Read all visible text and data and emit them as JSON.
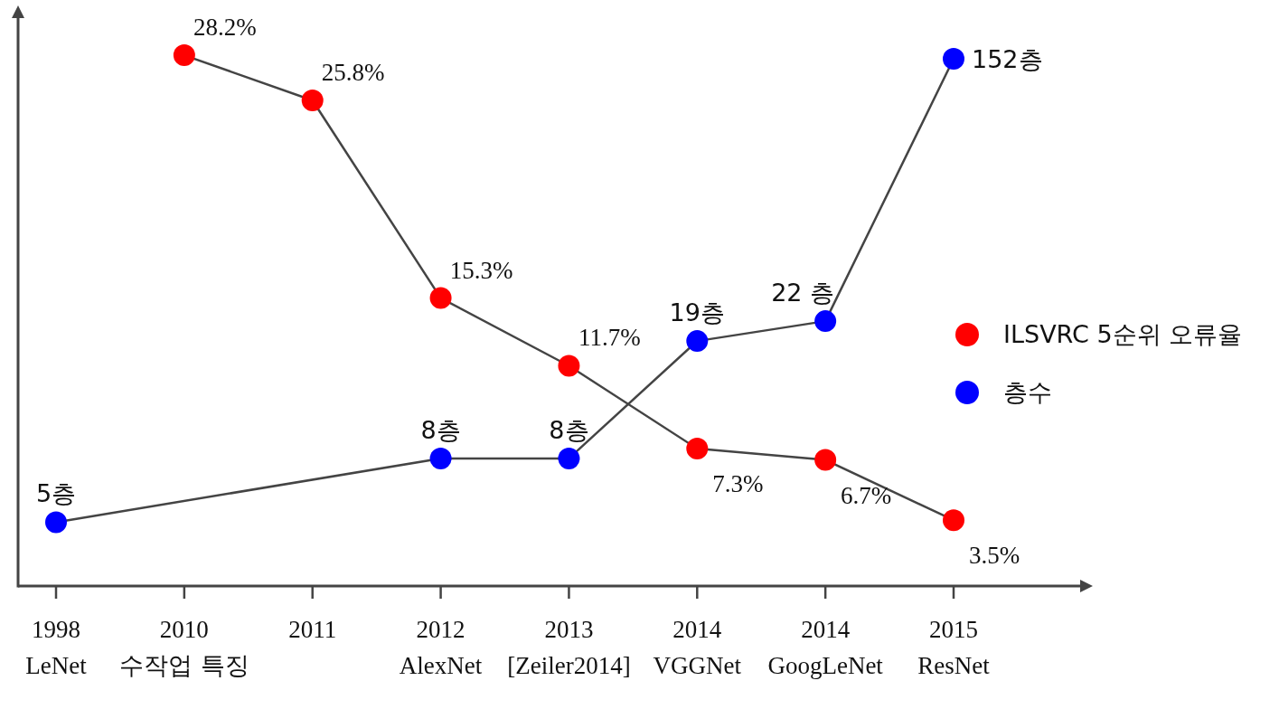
{
  "chart_data": {
    "type": "line",
    "categories": [
      "1998\nLeNet",
      "2010\n수작업 특징",
      "2011",
      "2012\nAlexNet",
      "2013\n[Zeiler2014]",
      "2014\nVGGNet",
      "2014\nGoogLeNet",
      "2015\nResNet"
    ],
    "series": [
      {
        "name": "ILSVRC 5순위 오류율",
        "color": "#ff0000",
        "values": [
          null,
          28.2,
          25.8,
          15.3,
          11.7,
          7.3,
          6.7,
          3.5
        ],
        "value_labels": [
          null,
          "28.2%",
          "25.8%",
          "15.3%",
          "11.7%",
          "7.3%",
          "6.7%",
          "3.5%"
        ]
      },
      {
        "name": "층수",
        "color": "#0000ff",
        "axis": "y2",
        "values": [
          5,
          null,
          null,
          8,
          8,
          19,
          22,
          152
        ],
        "value_labels": [
          "5층",
          null,
          null,
          "8층",
          "8층",
          "19층",
          "22 층",
          "152층"
        ]
      }
    ],
    "log": "y2",
    "marker": "circle",
    "legend": "right"
  }
}
